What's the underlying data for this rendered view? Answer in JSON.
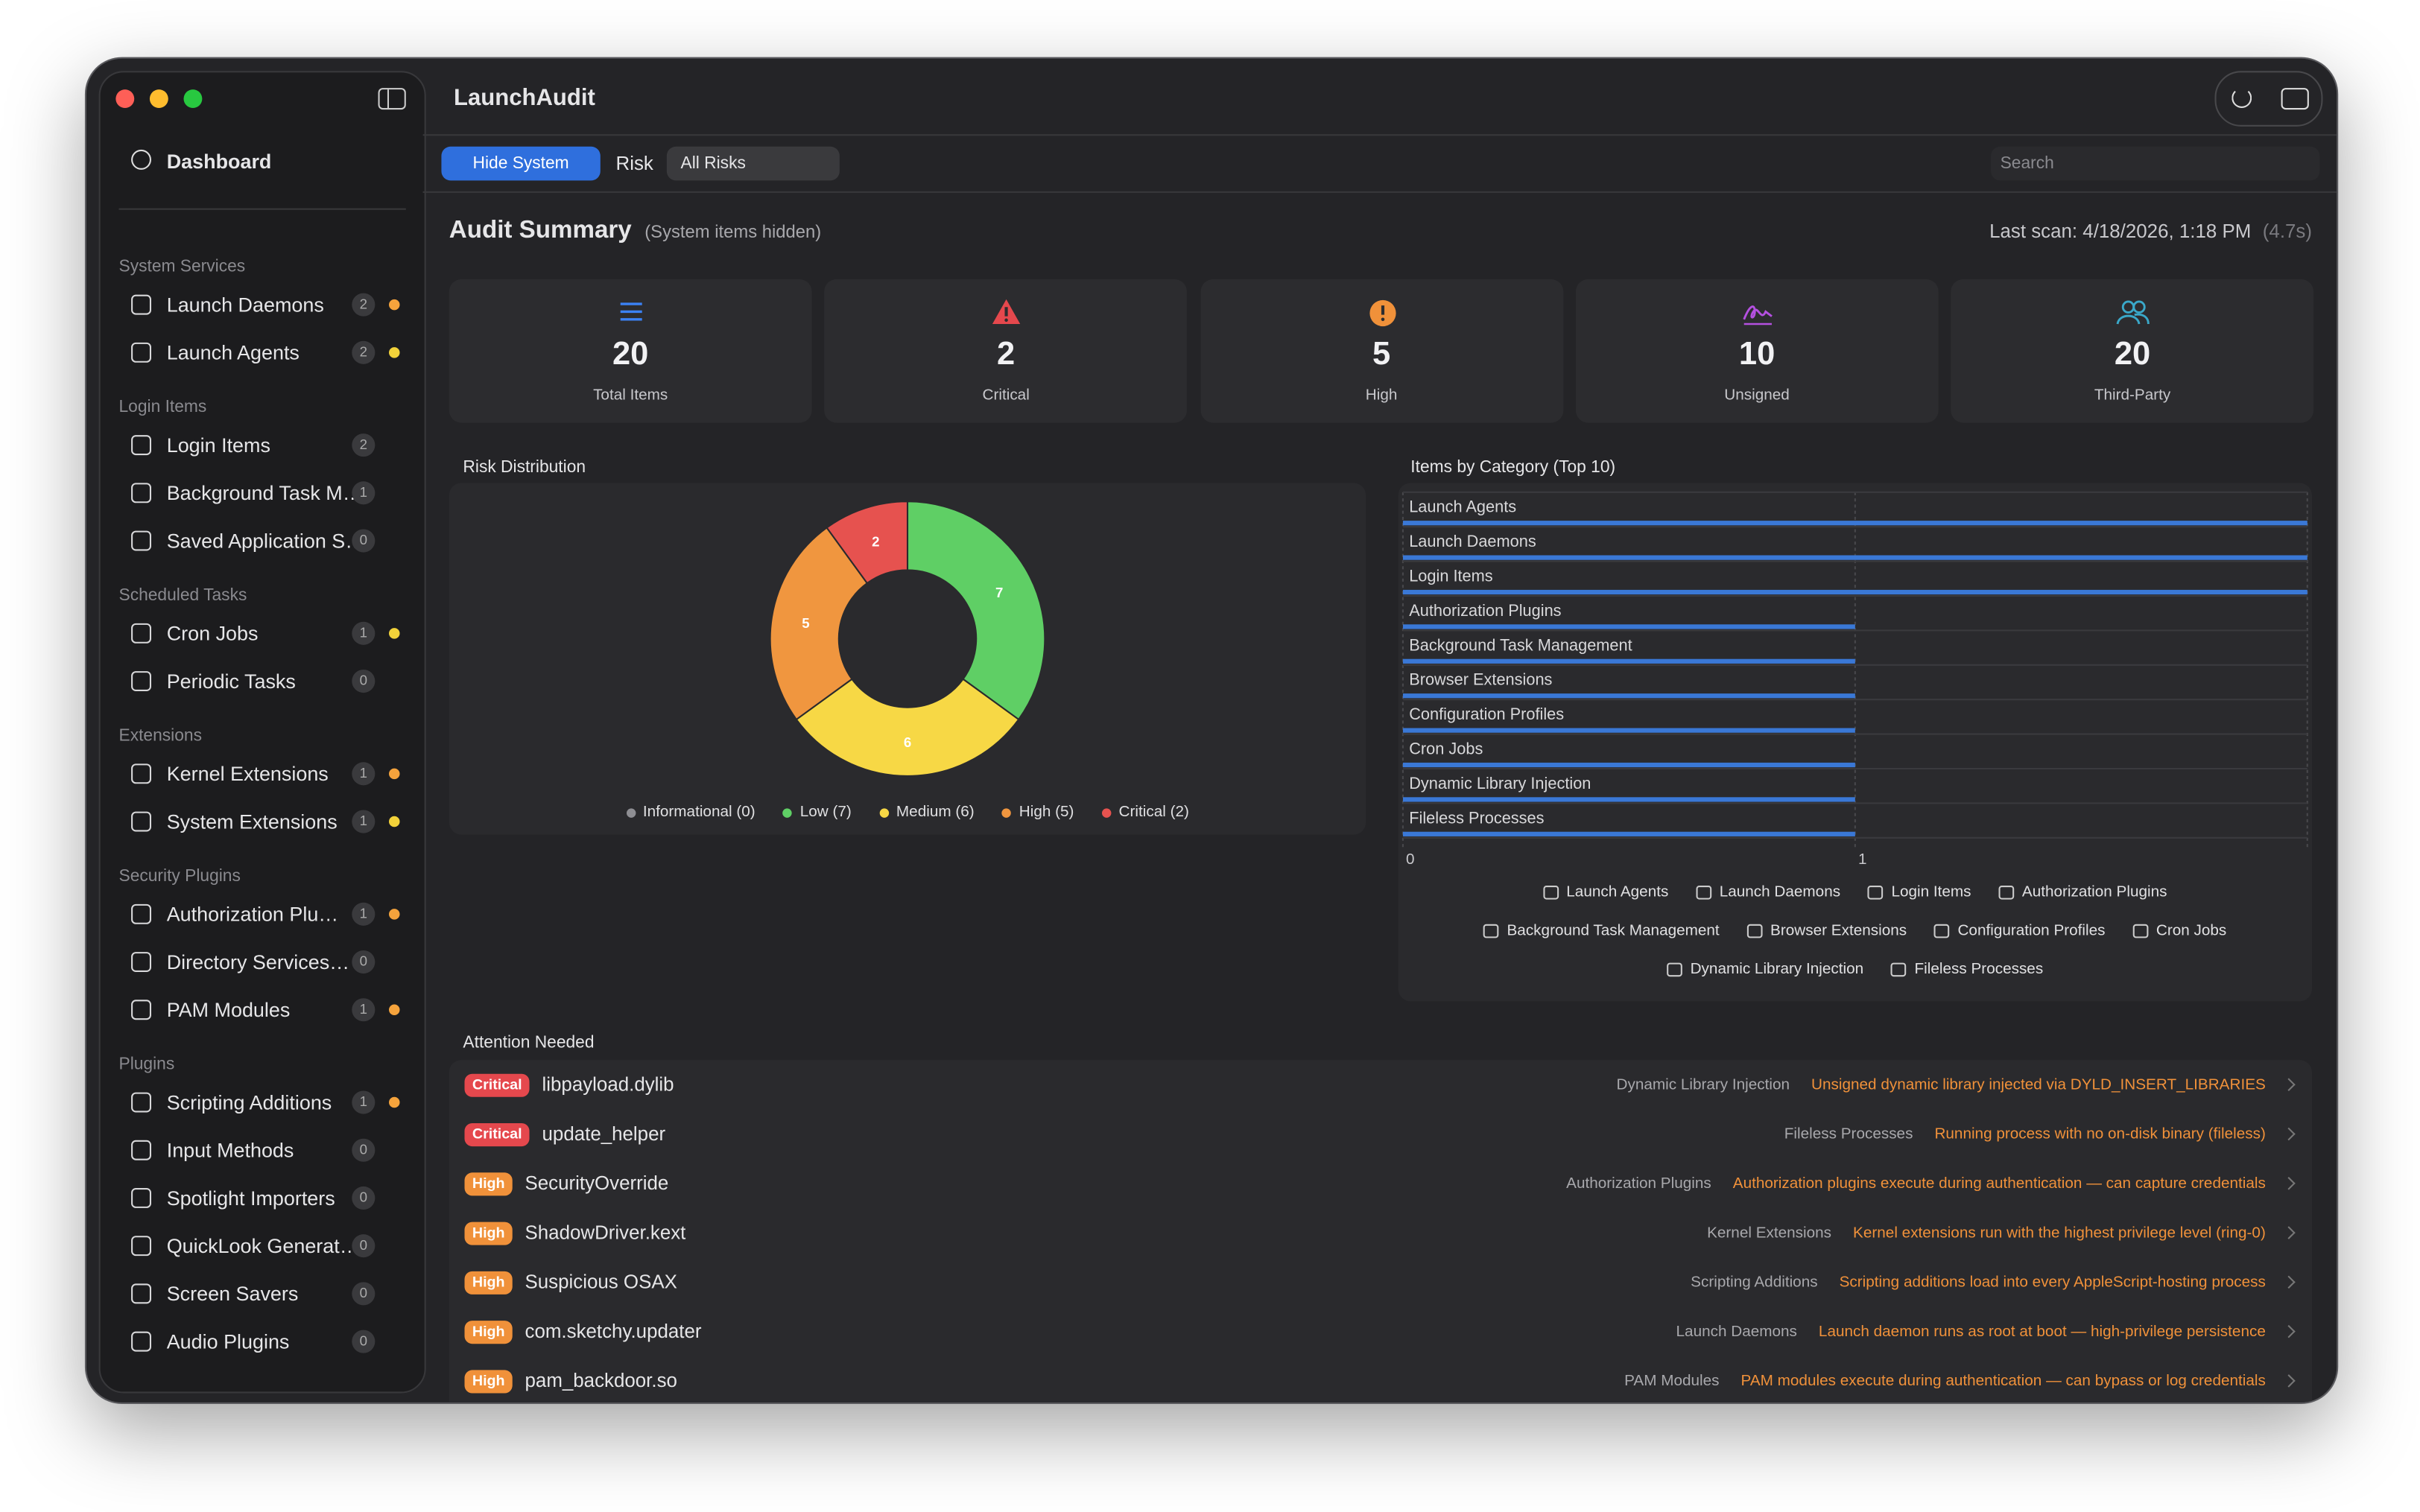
{
  "window": {
    "title": "LaunchAudit"
  },
  "sidebar": {
    "top": "Dashboard",
    "sections": [
      {
        "title": "System Services",
        "items": [
          {
            "label": "Launch Daemons",
            "count": 2,
            "dot": "#f5a33c"
          },
          {
            "label": "Launch Agents",
            "count": 2,
            "dot": "#f2d23a"
          }
        ]
      },
      {
        "title": "Login Items",
        "items": [
          {
            "label": "Login Items",
            "count": 2
          },
          {
            "label": "Background Task M…",
            "count": 1
          },
          {
            "label": "Saved Application S…",
            "count": 0
          }
        ]
      },
      {
        "title": "Scheduled Tasks",
        "items": [
          {
            "label": "Cron Jobs",
            "count": 1,
            "dot": "#f2d23a"
          },
          {
            "label": "Periodic Tasks",
            "count": 0
          }
        ]
      },
      {
        "title": "Extensions",
        "items": [
          {
            "label": "Kernel Extensions",
            "count": 1,
            "dot": "#f5a33c"
          },
          {
            "label": "System Extensions",
            "count": 1,
            "dot": "#f2d23a"
          }
        ]
      },
      {
        "title": "Security Plugins",
        "items": [
          {
            "label": "Authorization Plu…",
            "count": 1,
            "dot": "#f5a33c"
          },
          {
            "label": "Directory Services…",
            "count": 0
          },
          {
            "label": "PAM Modules",
            "count": 1,
            "dot": "#f5a33c"
          }
        ]
      },
      {
        "title": "Plugins",
        "items": [
          {
            "label": "Scripting Additions",
            "count": 1,
            "dot": "#f5a33c"
          },
          {
            "label": "Input Methods",
            "count": 0
          },
          {
            "label": "Spotlight Importers",
            "count": 0
          },
          {
            "label": "QuickLook Generat…",
            "count": 0
          },
          {
            "label": "Screen Savers",
            "count": 0
          },
          {
            "label": "Audio Plugins",
            "count": 0
          }
        ]
      }
    ]
  },
  "toolbar": {
    "hide_system": "Hide System",
    "risk_label": "Risk",
    "risk_select": "All Risks",
    "search": "Search"
  },
  "summary": {
    "title": "Audit Summary",
    "subtitle": "(System items hidden)",
    "last_scan": "Last scan: 4/18/2026, 1:18 PM",
    "duration": "(4.7s)",
    "cards": [
      {
        "value": 20,
        "label": "Total Items",
        "color": "#3b82f6"
      },
      {
        "value": 2,
        "label": "Critical",
        "color": "#e5484d"
      },
      {
        "value": 5,
        "label": "High",
        "color": "#f0913a"
      },
      {
        "value": 10,
        "label": "Unsigned",
        "color": "#b450e0"
      },
      {
        "value": 20,
        "label": "Third-Party",
        "color": "#3aa8c9"
      }
    ]
  },
  "chart_data": [
    {
      "type": "pie",
      "title": "Risk Distribution",
      "hole": 0.5,
      "categories": [
        "Informational",
        "Low",
        "Medium",
        "High",
        "Critical"
      ],
      "values": [
        0,
        7,
        6,
        5,
        2
      ],
      "colors": [
        "#8e8e93",
        "#5fcf65",
        "#f7d845",
        "#f0963f",
        "#e6524f"
      ],
      "legend_labels": [
        "Informational (0)",
        "Low (7)",
        "Medium (6)",
        "High (5)",
        "Critical (2)"
      ]
    },
    {
      "type": "bar",
      "orientation": "horizontal",
      "title": "Items by Category (Top 10)",
      "categories": [
        "Launch Agents",
        "Launch Daemons",
        "Login Items",
        "Authorization Plugins",
        "Background Task Management",
        "Browser Extensions",
        "Configuration Profiles",
        "Cron Jobs",
        "Dynamic Library Injection",
        "Fileless Processes"
      ],
      "values": [
        2,
        2,
        2,
        1,
        1,
        1,
        1,
        1,
        1,
        1
      ],
      "color": "#3a78d6",
      "xlim": [
        0,
        2
      ],
      "xticks": [
        0,
        1
      ],
      "grid": true
    }
  ],
  "attention": {
    "title": "Attention Needed",
    "rows": [
      {
        "risk": "Critical",
        "color": "#e5484d",
        "name": "libpayload.dylib",
        "category": "Dynamic Library Injection",
        "reason": "Unsigned dynamic library injected via DYLD_INSERT_LIBRARIES"
      },
      {
        "risk": "Critical",
        "color": "#e5484d",
        "name": "update_helper",
        "category": "Fileless Processes",
        "reason": "Running process with no on-disk binary (fileless)"
      },
      {
        "risk": "High",
        "color": "#f0913a",
        "name": "SecurityOverride",
        "category": "Authorization Plugins",
        "reason": "Authorization plugins execute during authentication — can capture credentials"
      },
      {
        "risk": "High",
        "color": "#f0913a",
        "name": "ShadowDriver.kext",
        "category": "Kernel Extensions",
        "reason": "Kernel extensions run with the highest privilege level (ring-0)"
      },
      {
        "risk": "High",
        "color": "#f0913a",
        "name": "Suspicious OSAX",
        "category": "Scripting Additions",
        "reason": "Scripting additions load into every AppleScript-hosting process"
      },
      {
        "risk": "High",
        "color": "#f0913a",
        "name": "com.sketchy.updater",
        "category": "Launch Daemons",
        "reason": "Launch daemon runs as root at boot — high-privilege persistence"
      },
      {
        "risk": "High",
        "color": "#f0913a",
        "name": "pam_backdoor.so",
        "category": "PAM Modules",
        "reason": "PAM modules execute during authentication — can bypass or log credentials"
      }
    ]
  }
}
